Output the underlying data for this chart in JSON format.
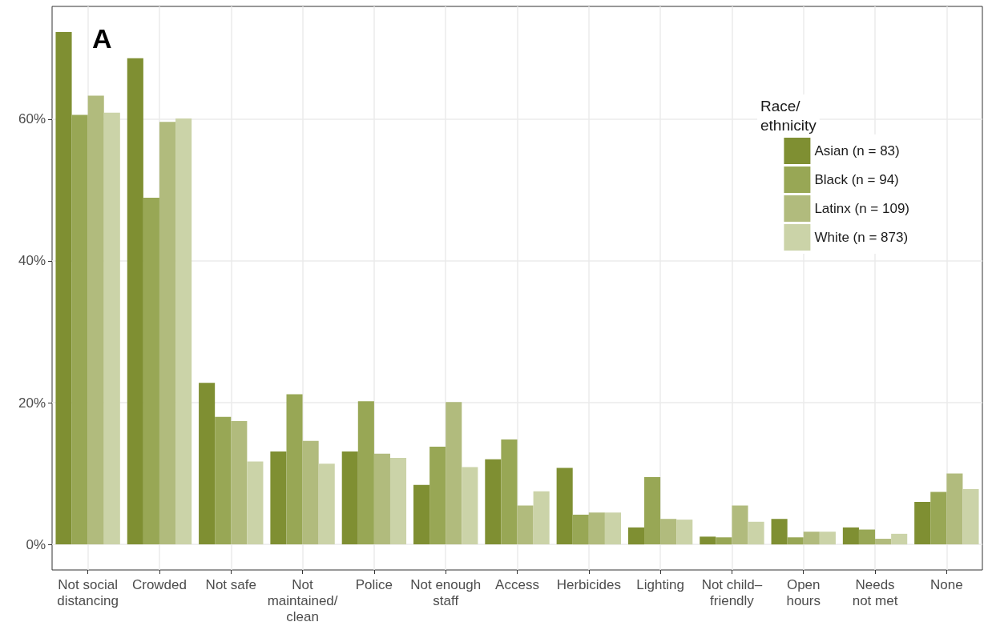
{
  "chart_data": {
    "type": "bar",
    "categories": [
      "Not social\ndistancing",
      "Crowded",
      "Not safe",
      "Not\nmaintained/\nclean",
      "Police",
      "Not enough\nstaff",
      "Access",
      "Herbicides",
      "Lighting",
      "Not child–\nfriendly",
      "Open\nhours",
      "Needs\nnot met",
      "None"
    ],
    "series": [
      {
        "name": "Asian (n = 83)",
        "color": "#7f8f32",
        "values": [
          72.3,
          68.6,
          22.8,
          13.1,
          13.1,
          8.4,
          12.0,
          10.8,
          2.4,
          1.1,
          3.6,
          2.4,
          6.0
        ]
      },
      {
        "name": "Black (n = 94)",
        "color": "#98a755",
        "values": [
          60.6,
          48.9,
          18.0,
          21.2,
          20.2,
          13.8,
          14.8,
          4.2,
          9.5,
          1.0,
          1.0,
          2.1,
          7.4
        ]
      },
      {
        "name": "Latinx (n = 109)",
        "color": "#b1bb7d",
        "values": [
          63.3,
          59.6,
          17.4,
          14.6,
          12.8,
          20.1,
          5.5,
          4.5,
          3.6,
          5.5,
          1.8,
          0.8,
          10.0
        ]
      },
      {
        "name": "White (n = 873)",
        "color": "#cbd3a8",
        "values": [
          60.9,
          60.1,
          11.7,
          11.4,
          12.2,
          10.9,
          7.5,
          4.5,
          3.5,
          3.2,
          1.8,
          1.5,
          7.8
        ]
      }
    ],
    "ylim": [
      -3.6,
      75.9
    ],
    "yticks": [
      {
        "value": 0,
        "label": "0%"
      },
      {
        "value": 20,
        "label": "20%"
      },
      {
        "value": 40,
        "label": "40%"
      },
      {
        "value": 60,
        "label": "60%"
      }
    ],
    "legend_title": "Race/\nethnicity",
    "legend": "top right",
    "grid": true,
    "annotations": [
      "A"
    ]
  }
}
